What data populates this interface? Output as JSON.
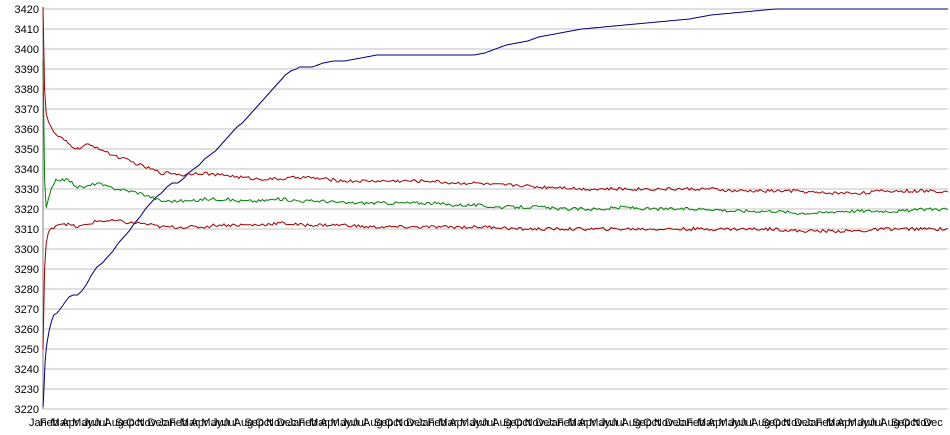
{
  "chart_data": {
    "type": "line",
    "title": "",
    "xlabel": "",
    "ylabel": "",
    "ylim": [
      3220,
      3420
    ],
    "yticks": [
      3220,
      3230,
      3240,
      3250,
      3260,
      3270,
      3280,
      3290,
      3300,
      3310,
      3320,
      3330,
      3340,
      3350,
      3360,
      3370,
      3380,
      3390,
      3400,
      3410,
      3420
    ],
    "grid": "horizontal",
    "legend": "none",
    "x_tick_labels": [
      "Jan",
      "Feb",
      "Mar",
      "Apr",
      "May",
      "Jun",
      "Jul",
      "Aug",
      "Sep",
      "Oct",
      "Nov",
      "Dec",
      "Jan",
      "Feb",
      "Mar",
      "Apr",
      "May",
      "Jun",
      "Jul",
      "Aug",
      "Sep",
      "Oct",
      "Nov",
      "Dec",
      "Jan",
      "Feb",
      "Mar",
      "Apr",
      "May",
      "Jun",
      "Jul",
      "Aug",
      "Sep",
      "Oct",
      "Nov",
      "Dec",
      "Jan",
      "Feb",
      "Mar",
      "Apr",
      "May",
      "Jun",
      "Jul",
      "Aug",
      "Sep",
      "Oct",
      "Nov",
      "Dec",
      "Jan",
      "Feb",
      "Mar",
      "Apr",
      "May",
      "Jun",
      "Jul",
      "Aug",
      "Sep",
      "Oct",
      "Nov",
      "Dec",
      "Jan",
      "Feb",
      "Mar",
      "Apr",
      "May",
      "Jun",
      "Jul",
      "Aug",
      "Sep",
      "Oct",
      "Nov",
      "Dec",
      "Jan",
      "Feb",
      "Mar",
      "Apr",
      "May",
      "Jun",
      "Jul",
      "Aug",
      "Sep",
      "Oct",
      "Nov",
      "Dec"
    ],
    "series": [
      {
        "color": "#000080",
        "x": [
          0,
          0.05,
          0.1,
          0.15,
          0.2,
          0.3,
          0.4,
          0.5,
          0.6,
          0.8,
          1.0,
          1.3,
          1.6,
          2.0,
          2.4,
          2.8,
          3.2,
          3.6,
          4.0,
          4.5,
          5,
          5.5,
          6,
          6.5,
          7,
          7.5,
          8,
          8.5,
          9,
          9.5,
          10,
          10.5,
          11,
          11.5,
          12,
          12.5,
          13,
          13.5,
          14,
          14.5,
          15,
          15.5,
          16,
          16.5,
          17,
          17.5,
          18,
          18.5,
          19,
          19.5,
          20,
          20.5,
          21,
          21.5,
          22,
          22.5,
          23,
          23.5,
          23.8,
          24,
          25,
          26,
          27,
          28,
          30,
          31,
          32,
          34,
          36,
          38,
          40,
          41,
          42,
          43,
          44,
          45,
          46,
          48,
          50,
          52,
          54,
          56,
          58,
          60,
          62,
          64,
          66,
          68,
          70,
          72,
          74,
          76,
          78,
          80,
          82,
          84
        ],
        "values": [
          3221,
          3225,
          3232,
          3238,
          3244,
          3250,
          3254,
          3257,
          3260,
          3264,
          3267,
          3268,
          3270,
          3273,
          3276,
          3277,
          3277,
          3279,
          3282,
          3287,
          3291,
          3293,
          3296,
          3299,
          3303,
          3306,
          3309,
          3313,
          3316,
          3320,
          3323,
          3326,
          3328,
          3331,
          3333,
          3333,
          3335,
          3338,
          3340,
          3342,
          3345,
          3347,
          3349,
          3352,
          3355,
          3358,
          3361,
          3363,
          3366,
          3369,
          3372,
          3375,
          3378,
          3381,
          3384,
          3387,
          3389,
          3390,
          3391,
          3391,
          3391,
          3393,
          3394,
          3394,
          3396,
          3397,
          3397,
          3397,
          3397,
          3397,
          3397,
          3398,
          3400,
          3402,
          3403,
          3404,
          3406,
          3408,
          3410,
          3411,
          3412,
          3413,
          3414,
          3415,
          3417,
          3418,
          3419,
          3420,
          3420,
          3420,
          3420,
          3420,
          3420,
          3420,
          3420,
          3420
        ]
      },
      {
        "color": "#A00000",
        "x": [
          0,
          0.15,
          0.3,
          0.5,
          0.8,
          1.2,
          1.8,
          2.5,
          3.2,
          4,
          5,
          6,
          7,
          8,
          9,
          10,
          11,
          12,
          13,
          14,
          15,
          16,
          17,
          18,
          20,
          22,
          24,
          26,
          28,
          30,
          32,
          34,
          36,
          38,
          40,
          42,
          44,
          46,
          48,
          50,
          52,
          54,
          56,
          58,
          60,
          62,
          64,
          66,
          68,
          70,
          72,
          74,
          76,
          78,
          80,
          82,
          84
        ],
        "values": [
          3421,
          3380,
          3368,
          3364,
          3360,
          3357,
          3355,
          3352,
          3350,
          3352,
          3351,
          3348,
          3346,
          3344,
          3342,
          3340,
          3338,
          3338,
          3337,
          3338,
          3338,
          3337,
          3337,
          3336,
          3335,
          3335,
          3336,
          3335,
          3334,
          3334,
          3334,
          3334,
          3334,
          3333,
          3333,
          3332,
          3332,
          3331,
          3331,
          3330,
          3330,
          3330,
          3330,
          3330,
          3330,
          3330,
          3329,
          3329,
          3329,
          3329,
          3328,
          3328,
          3328,
          3329,
          3329,
          3329,
          3329
        ]
      },
      {
        "color": "#008000",
        "x": [
          0,
          0.15,
          0.3,
          0.5,
          0.8,
          1.2,
          1.8,
          2.5,
          3.2,
          4,
          5,
          6,
          7,
          8,
          9,
          10,
          11,
          12,
          13,
          14,
          15,
          16,
          17,
          18,
          20,
          22,
          24,
          26,
          28,
          30,
          32,
          34,
          36,
          38,
          40,
          42,
          44,
          46,
          48,
          50,
          52,
          54,
          56,
          58,
          60,
          62,
          64,
          66,
          68,
          70,
          72,
          74,
          76,
          78,
          80,
          82,
          84
        ],
        "values": [
          3394,
          3335,
          3320,
          3325,
          3330,
          3334,
          3335,
          3334,
          3331,
          3331,
          3333,
          3331,
          3330,
          3329,
          3328,
          3326,
          3324,
          3324,
          3324,
          3324,
          3325,
          3325,
          3325,
          3324,
          3324,
          3325,
          3324,
          3324,
          3323,
          3323,
          3323,
          3323,
          3323,
          3322,
          3322,
          3321,
          3321,
          3321,
          3320,
          3320,
          3320,
          3321,
          3320,
          3320,
          3320,
          3320,
          3319,
          3319,
          3319,
          3318,
          3318,
          3319,
          3319,
          3319,
          3319,
          3320,
          3320
        ]
      },
      {
        "color": "#A00000",
        "x": [
          0,
          0.15,
          0.3,
          0.5,
          0.8,
          1.2,
          1.8,
          2.5,
          3.2,
          4,
          5,
          6,
          7,
          8,
          9,
          10,
          11,
          12,
          13,
          14,
          15,
          16,
          17,
          18,
          20,
          22,
          24,
          26,
          28,
          30,
          32,
          34,
          36,
          38,
          40,
          42,
          44,
          46,
          48,
          50,
          52,
          54,
          56,
          58,
          60,
          62,
          64,
          66,
          68,
          70,
          72,
          74,
          76,
          78,
          80,
          82,
          84
        ],
        "values": [
          3250,
          3290,
          3303,
          3308,
          3310,
          3312,
          3313,
          3312,
          3311,
          3312,
          3314,
          3314,
          3314,
          3313,
          3313,
          3312,
          3311,
          3311,
          3311,
          3311,
          3311,
          3312,
          3312,
          3312,
          3312,
          3313,
          3312,
          3312,
          3312,
          3311,
          3311,
          3311,
          3311,
          3311,
          3311,
          3311,
          3310,
          3310,
          3310,
          3310,
          3310,
          3310,
          3310,
          3310,
          3310,
          3310,
          3310,
          3310,
          3310,
          3309,
          3309,
          3309,
          3309,
          3310,
          3310,
          3310,
          3310
        ]
      }
    ]
  }
}
